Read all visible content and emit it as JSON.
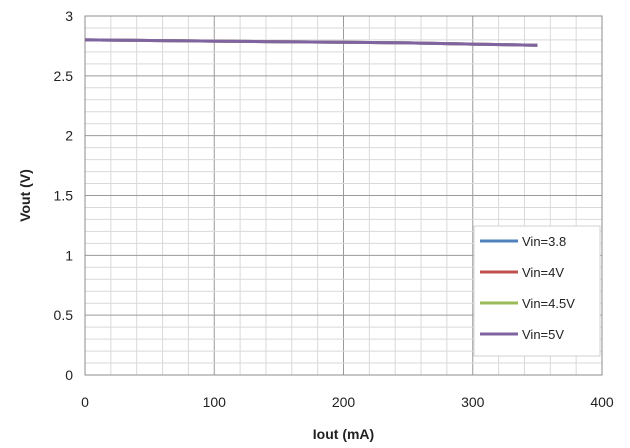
{
  "chart_data": {
    "type": "line",
    "title": "",
    "xlabel": "Iout (mA)",
    "ylabel": "Vout (V)",
    "xlim": [
      0,
      400
    ],
    "ylim": [
      0,
      3
    ],
    "x_ticks": [
      "0",
      "100",
      "200",
      "300",
      "400"
    ],
    "y_ticks": [
      "0",
      "0.5",
      "1",
      "1.5",
      "2",
      "2.5",
      "3"
    ],
    "grid": true,
    "legend_position": "bottom-right",
    "series": [
      {
        "name": "Vin=3.8",
        "color": "#4f81bd",
        "x": [
          0,
          50,
          100,
          150,
          200,
          250,
          300,
          350
        ],
        "y": [
          2.8,
          2.795,
          2.79,
          2.785,
          2.78,
          2.775,
          2.765,
          2.755
        ]
      },
      {
        "name": "Vin=4V",
        "color": "#c0504d",
        "x": [
          0,
          50,
          100,
          150,
          200,
          250,
          300,
          350
        ],
        "y": [
          2.8,
          2.795,
          2.79,
          2.785,
          2.78,
          2.775,
          2.765,
          2.755
        ]
      },
      {
        "name": "Vin=4.5V",
        "color": "#9bbb59",
        "x": [
          0,
          50,
          100,
          150,
          200,
          250,
          300,
          350
        ],
        "y": [
          2.8,
          2.795,
          2.79,
          2.785,
          2.78,
          2.775,
          2.765,
          2.755
        ]
      },
      {
        "name": "Vin=5V",
        "color": "#8064a2",
        "x": [
          0,
          50,
          100,
          150,
          200,
          250,
          300,
          350
        ],
        "y": [
          2.8,
          2.795,
          2.79,
          2.785,
          2.78,
          2.775,
          2.765,
          2.755
        ]
      }
    ]
  }
}
